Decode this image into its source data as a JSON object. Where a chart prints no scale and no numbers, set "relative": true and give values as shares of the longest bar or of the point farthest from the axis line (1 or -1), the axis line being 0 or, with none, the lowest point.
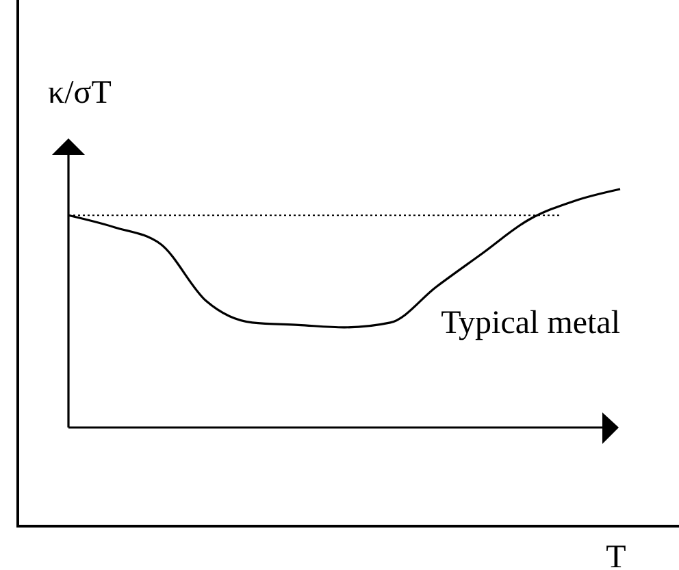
{
  "chart_data": {
    "type": "line",
    "relative": true,
    "ylabel": "κ/σT",
    "xlabel": "T",
    "categories": [
      null,
      null,
      null,
      null,
      null,
      null,
      null,
      null,
      null,
      null,
      null,
      null,
      null
    ],
    "series": [
      {
        "name": "Typical metal",
        "color": "#000000",
        "values": [
          0.89,
          0.84,
          0.77,
          0.53,
          0.44,
          0.43,
          0.42,
          0.44,
          0.59,
          0.73,
          0.87,
          0.95,
          1
        ]
      }
    ],
    "ref_lines": [
      {
        "axis": "y",
        "value": 0.89,
        "color": "#000000",
        "line_style": "dotted"
      }
    ]
  }
}
